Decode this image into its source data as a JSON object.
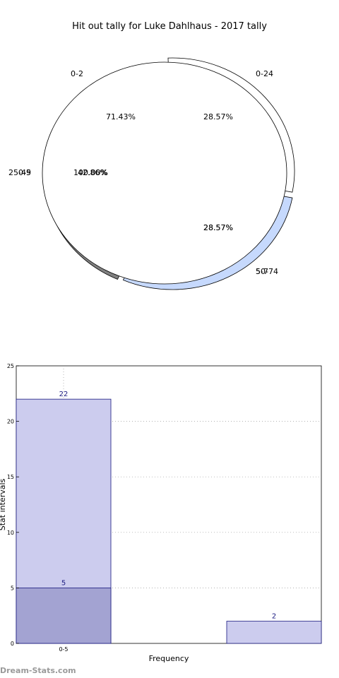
{
  "watermark": "Dream-Stats.com",
  "chart_data": [
    {
      "type": "pie",
      "title": "Hit out tally for Luke Dahlhaus - 2017 tally",
      "slices": [
        {
          "ring": "outer",
          "label": "0-24",
          "pct_label": "28.57%",
          "value": 28.57,
          "color": "#ffffff"
        },
        {
          "ring": "outer",
          "label": "50-74",
          "pct_label": "28.57%",
          "value": 28.57,
          "color": "#c6d9fd"
        },
        {
          "ring": "outer",
          "label": "25-49",
          "pct_label": "42.86%",
          "value": 42.86,
          "color": "#808080"
        },
        {
          "ring": "inner",
          "label": "0-2",
          "pct_label": "71.43%",
          "value": 71.43,
          "color": "#ffffff"
        },
        {
          "ring": "inner",
          "label": "5-7",
          "pct_label": "28.57%",
          "value": 28.57,
          "color": "#ffffff"
        },
        {
          "ring": "inner",
          "label": "0-5",
          "pct_label": "100.00%",
          "value": 100.0,
          "color": "#ffffff"
        }
      ]
    },
    {
      "type": "bar",
      "xlabel": "Frequency",
      "ylabel": "Stat intervals",
      "ylim": [
        0,
        25
      ],
      "yticks": [
        0,
        5,
        10,
        15,
        20,
        25
      ],
      "categories": [
        "0-5",
        "",
        ""
      ],
      "bars": [
        {
          "index": 0,
          "value": 22,
          "label": "22",
          "color": "#ccccee"
        },
        {
          "index": 0,
          "value": 5,
          "label": "5",
          "color": "#a3a3d2"
        },
        {
          "index": 2,
          "value": 2,
          "label": "2",
          "color": "#ccccee"
        }
      ],
      "grid": true
    }
  ]
}
